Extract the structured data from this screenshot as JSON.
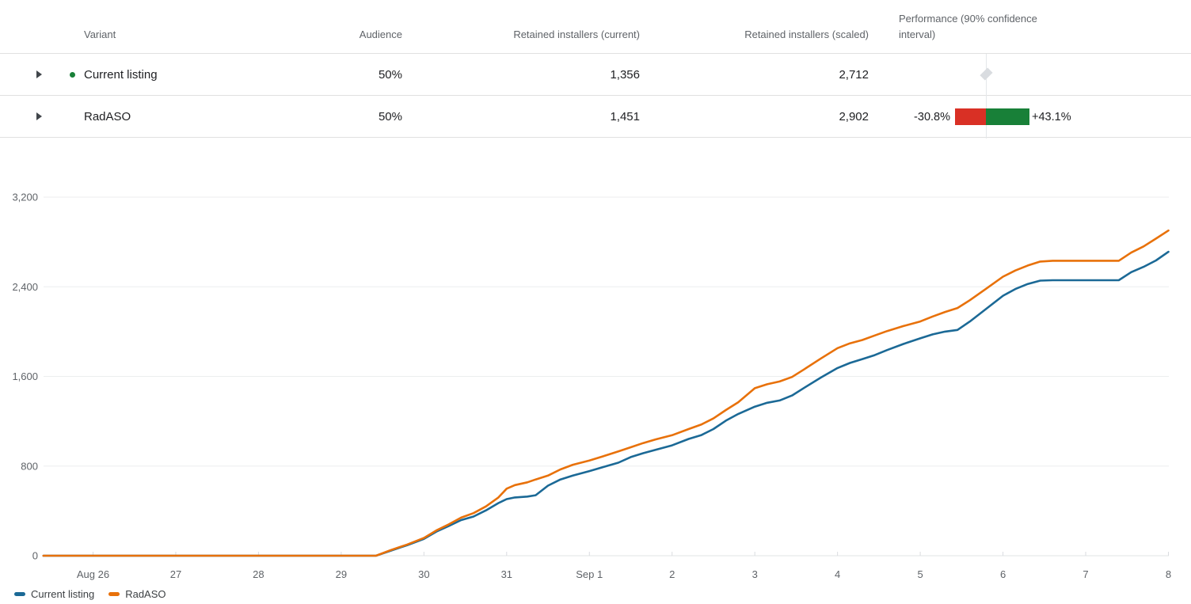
{
  "table": {
    "header": {
      "variant": "Variant",
      "audience": "Audience",
      "retained_current": "Retained installers (current)",
      "retained_scaled": "Retained installers (scaled)",
      "performance": "Performance (90% confidence interval)"
    },
    "rows": [
      {
        "variant": "Current listing",
        "audience": "50%",
        "retained_current": "1,356",
        "retained_scaled": "2,712",
        "performance_marker": "baseline-diamond",
        "has_status_dot": true
      },
      {
        "variant": "RadASO",
        "audience": "50%",
        "retained_current": "1,451",
        "retained_scaled": "2,902",
        "performance_marker": "confidence-interval",
        "ci_low_label": "-30.8%",
        "ci_high_label": "+43.1%",
        "ci_low_pct": 30.8,
        "ci_high_pct": 43.1
      }
    ]
  },
  "colors": {
    "current_listing_line": "#1b6996",
    "radaso_line": "#e8710a",
    "ci_negative": "#d93025",
    "ci_positive": "#188038",
    "status_dot_green": "#188038"
  },
  "chart_data": {
    "type": "line",
    "title": "",
    "xlabel": "",
    "ylabel": "",
    "grid": true,
    "legend_position": "bottom-left",
    "ylim": [
      0,
      3200
    ],
    "xlim": [
      -0.6,
      13
    ],
    "x_unit": "day index (Aug 26 = 0, Sep 8 = 13)",
    "yticks": [
      {
        "v": 0,
        "label": "0"
      },
      {
        "v": 800,
        "label": "800"
      },
      {
        "v": 1600,
        "label": "1,600"
      },
      {
        "v": 2400,
        "label": "2,400"
      },
      {
        "v": 3200,
        "label": "3,200"
      }
    ],
    "x_ticks": [
      {
        "t": 0,
        "label": "Aug 26"
      },
      {
        "t": 1,
        "label": "27"
      },
      {
        "t": 2,
        "label": "28"
      },
      {
        "t": 3,
        "label": "29"
      },
      {
        "t": 4,
        "label": "30"
      },
      {
        "t": 5,
        "label": "31"
      },
      {
        "t": 6,
        "label": "Sep 1"
      },
      {
        "t": 7,
        "label": "2"
      },
      {
        "t": 8,
        "label": "3"
      },
      {
        "t": 9,
        "label": "4"
      },
      {
        "t": 10,
        "label": "5"
      },
      {
        "t": 11,
        "label": "6"
      },
      {
        "t": 12,
        "label": "7"
      },
      {
        "t": 13,
        "label": "8"
      }
    ],
    "series": [
      {
        "name": "Current listing",
        "color": "#1b6996",
        "points": [
          [
            -0.6,
            0
          ],
          [
            0,
            0
          ],
          [
            1,
            0
          ],
          [
            2,
            0
          ],
          [
            3,
            0
          ],
          [
            3.42,
            0
          ],
          [
            3.6,
            45
          ],
          [
            3.8,
            95
          ],
          [
            4,
            150
          ],
          [
            4.15,
            215
          ],
          [
            4.3,
            265
          ],
          [
            4.45,
            318
          ],
          [
            4.6,
            350
          ],
          [
            4.75,
            405
          ],
          [
            4.9,
            470
          ],
          [
            5,
            505
          ],
          [
            5.1,
            520
          ],
          [
            5.25,
            528
          ],
          [
            5.35,
            540
          ],
          [
            5.5,
            625
          ],
          [
            5.65,
            680
          ],
          [
            5.8,
            715
          ],
          [
            6,
            755
          ],
          [
            6.2,
            798
          ],
          [
            6.35,
            830
          ],
          [
            6.5,
            880
          ],
          [
            6.65,
            915
          ],
          [
            6.8,
            945
          ],
          [
            7,
            985
          ],
          [
            7.2,
            1042
          ],
          [
            7.35,
            1075
          ],
          [
            7.5,
            1130
          ],
          [
            7.65,
            1205
          ],
          [
            7.8,
            1265
          ],
          [
            8,
            1330
          ],
          [
            8.15,
            1365
          ],
          [
            8.3,
            1385
          ],
          [
            8.45,
            1430
          ],
          [
            8.6,
            1500
          ],
          [
            8.8,
            1590
          ],
          [
            9,
            1675
          ],
          [
            9.15,
            1720
          ],
          [
            9.3,
            1755
          ],
          [
            9.45,
            1790
          ],
          [
            9.6,
            1835
          ],
          [
            9.8,
            1890
          ],
          [
            10,
            1940
          ],
          [
            10.15,
            1975
          ],
          [
            10.3,
            2000
          ],
          [
            10.45,
            2015
          ],
          [
            10.6,
            2090
          ],
          [
            10.8,
            2205
          ],
          [
            11,
            2320
          ],
          [
            11.15,
            2380
          ],
          [
            11.3,
            2425
          ],
          [
            11.45,
            2455
          ],
          [
            11.6,
            2458
          ],
          [
            12.4,
            2458
          ],
          [
            12.55,
            2530
          ],
          [
            12.7,
            2578
          ],
          [
            12.85,
            2635
          ],
          [
            13,
            2712
          ]
        ]
      },
      {
        "name": "RadASO",
        "color": "#e8710a",
        "points": [
          [
            -0.6,
            0
          ],
          [
            0,
            0
          ],
          [
            1,
            0
          ],
          [
            2,
            0
          ],
          [
            3,
            0
          ],
          [
            3.42,
            0
          ],
          [
            3.6,
            50
          ],
          [
            3.8,
            100
          ],
          [
            4,
            158
          ],
          [
            4.15,
            225
          ],
          [
            4.3,
            280
          ],
          [
            4.45,
            340
          ],
          [
            4.6,
            380
          ],
          [
            4.75,
            440
          ],
          [
            4.9,
            520
          ],
          [
            5,
            598
          ],
          [
            5.1,
            630
          ],
          [
            5.25,
            655
          ],
          [
            5.35,
            680
          ],
          [
            5.5,
            715
          ],
          [
            5.65,
            770
          ],
          [
            5.8,
            812
          ],
          [
            6,
            850
          ],
          [
            6.2,
            895
          ],
          [
            6.35,
            930
          ],
          [
            6.5,
            968
          ],
          [
            6.65,
            1005
          ],
          [
            6.8,
            1038
          ],
          [
            7,
            1075
          ],
          [
            7.2,
            1130
          ],
          [
            7.35,
            1170
          ],
          [
            7.5,
            1225
          ],
          [
            7.65,
            1300
          ],
          [
            7.8,
            1370
          ],
          [
            8,
            1495
          ],
          [
            8.15,
            1530
          ],
          [
            8.3,
            1555
          ],
          [
            8.45,
            1595
          ],
          [
            8.6,
            1665
          ],
          [
            8.8,
            1760
          ],
          [
            9,
            1852
          ],
          [
            9.15,
            1895
          ],
          [
            9.3,
            1925
          ],
          [
            9.45,
            1965
          ],
          [
            9.6,
            2005
          ],
          [
            9.8,
            2050
          ],
          [
            10,
            2090
          ],
          [
            10.15,
            2135
          ],
          [
            10.3,
            2175
          ],
          [
            10.45,
            2210
          ],
          [
            10.6,
            2280
          ],
          [
            10.8,
            2385
          ],
          [
            11,
            2490
          ],
          [
            11.15,
            2545
          ],
          [
            11.3,
            2590
          ],
          [
            11.45,
            2625
          ],
          [
            11.6,
            2632
          ],
          [
            12.4,
            2632
          ],
          [
            12.55,
            2705
          ],
          [
            12.7,
            2760
          ],
          [
            12.85,
            2830
          ],
          [
            13,
            2902
          ]
        ]
      }
    ]
  },
  "legend": {
    "items": [
      {
        "label": "Current listing",
        "color": "#1b6996"
      },
      {
        "label": "RadASO",
        "color": "#e8710a"
      }
    ]
  }
}
